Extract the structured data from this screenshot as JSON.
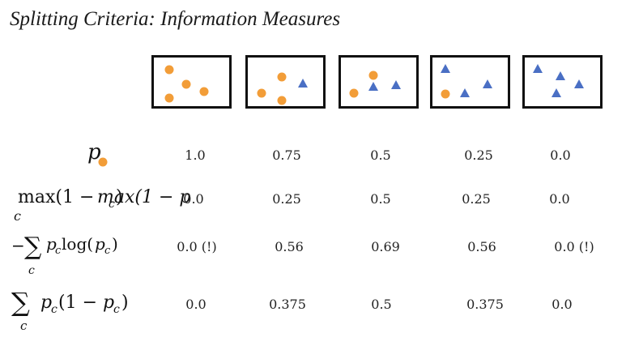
{
  "title": "Splitting Criteria: Information Measures",
  "colors": {
    "circle": "#f29d38",
    "triangle": "#4a6fc4",
    "border": "#111111"
  },
  "boxes": [
    {
      "circles": 3,
      "triangles": 0
    },
    {
      "circles": 3,
      "triangles": 1
    },
    {
      "circles": 2,
      "triangles": 2
    },
    {
      "circles": 1,
      "triangles": 3
    },
    {
      "circles": 0,
      "triangles": 3
    }
  ],
  "rows": [
    {
      "label": {
        "main": "p",
        "note": "orange circle subscript"
      },
      "values": [
        "1.0",
        "0.75",
        "0.5",
        "0.25",
        "0.0"
      ]
    },
    {
      "label": {
        "text": "max(1 − p",
        "sub": "c",
        "op_sub": "c",
        "close": ")"
      },
      "values": [
        "0.0",
        "0.25",
        "0.5",
        "0.25",
        "0.0"
      ]
    },
    {
      "label": {
        "prefix": "−",
        "sum": "∑",
        "op_sub": "c",
        "text": "p",
        "sub": "c",
        "mid": " log(p",
        "close": ")"
      },
      "values": [
        "0.0 (!)",
        "0.56",
        "0.69",
        "0.56",
        "0.0 (!)"
      ]
    },
    {
      "label": {
        "sum": "∑",
        "op_sub": "c",
        "text": "p",
        "sub": "c",
        "mid": "(1 − p",
        "close": ")"
      },
      "values": [
        "0.0",
        "0.375",
        "0.5",
        "0.375",
        "0.0"
      ]
    }
  ]
}
